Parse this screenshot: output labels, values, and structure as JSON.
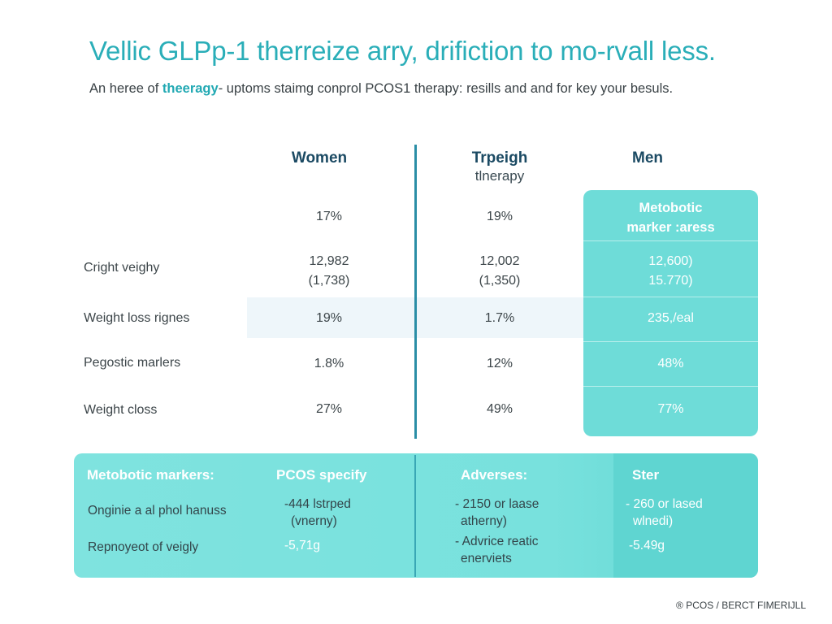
{
  "title": "Vellic GLPp-1 therreize arry, drifiction to mo-rvall less.",
  "subtitle": {
    "pre": "An heree of ",
    "highlight": "theeragy",
    "post": "- uptoms staimg conprol PCOS1 therapy: resills and and for key your besuls."
  },
  "columns": {
    "women": "Women",
    "therapy_line1": "Trpeigh",
    "therapy_line2": "tlnerapy",
    "men": "Men",
    "men_panel_header": "Metobotic marker :aress"
  },
  "rows": [
    {
      "label": "",
      "women": "17%",
      "therapy": "19%",
      "men": ""
    },
    {
      "label": "Cright veighy",
      "women": "12,982\n(1,738)",
      "therapy": "12,002\n(1,350)",
      "men": "12,600)\n15.770)"
    },
    {
      "label": "Weight loss rignes",
      "women": "19%",
      "therapy": "1.7%",
      "men": "235,/eal"
    },
    {
      "label": "Pegostic marlers",
      "women": "1.8%",
      "therapy": "12%",
      "men": "48%"
    },
    {
      "label": "Weight closs",
      "women": "27%",
      "therapy": "49%",
      "men": "77%"
    }
  ],
  "bottom": {
    "headers": [
      "Metobotic markers:",
      "PCOS specify",
      "Adverses:",
      "Ster"
    ],
    "left_rows": [
      "Onginie a al phol hanuss",
      "Repnoyeot of veigly"
    ],
    "pcos": [
      "-444 lstrped",
      "(vnerny)",
      "-5,71g"
    ],
    "adverses": [
      "- 2150 or laase",
      "atherny)",
      "- Advrice reatic",
      "enerviets"
    ],
    "ster": [
      "- 260 or lased",
      "wlnedi)",
      "-5.49g"
    ]
  },
  "footer": "® PCOS / BERCT FIMERIJLL",
  "colors": {
    "accent": "#2aaeb8",
    "panel": "#6edcd8",
    "divider": "#2a8ea6"
  }
}
